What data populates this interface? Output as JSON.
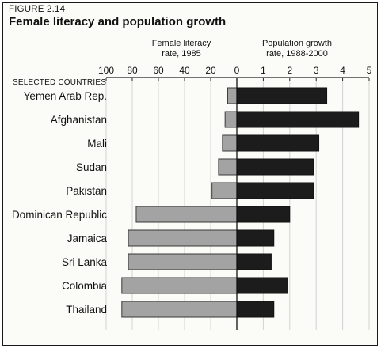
{
  "figure": {
    "label": "FIGURE 2.14",
    "title": "Female literacy and population growth"
  },
  "chart_data": {
    "type": "bar",
    "layout": "back-to-back horizontal bars",
    "category_heading": "SELECTED COUNTRIES",
    "categories": [
      "Yemen  Arab Rep.",
      "Afghanistan",
      "Mali",
      "Sudan",
      "Pakistan",
      "Dominican Republic",
      "Jamaica",
      "Sri Lanka",
      "Colombia",
      "Thailand"
    ],
    "series": [
      {
        "name": "Female literacy rate, 1985",
        "label_lines": [
          "Female literacy",
          "rate, 1985"
        ],
        "side": "left",
        "color": "#a3a3a3",
        "axis_range": [
          0,
          100
        ],
        "ticks": [
          100,
          80,
          60,
          40,
          20,
          0
        ],
        "values": [
          7,
          9,
          11,
          14,
          19,
          77,
          83,
          83,
          88,
          88
        ]
      },
      {
        "name": "Population growth rate, 1988-2000",
        "label_lines": [
          "Population growth",
          "rate, 1988-2000"
        ],
        "side": "right",
        "color": "#1c1c1c",
        "axis_range": [
          0,
          5
        ],
        "ticks": [
          0,
          1,
          2,
          3,
          4,
          5
        ],
        "values": [
          3.4,
          4.6,
          3.1,
          2.9,
          2.9,
          2.0,
          1.4,
          1.3,
          1.9,
          1.4
        ]
      }
    ],
    "grid": true
  }
}
